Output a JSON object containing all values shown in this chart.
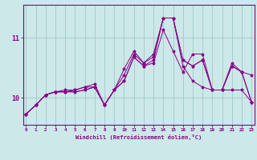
{
  "xlabel": "Windchill (Refroidissement éolien,°C)",
  "background_color": "#cde8e8",
  "grid_color": "#a0c8c8",
  "line_color": "#880088",
  "x_ticks": [
    0,
    1,
    2,
    3,
    4,
    5,
    6,
    7,
    8,
    9,
    10,
    11,
    12,
    13,
    14,
    15,
    16,
    17,
    18,
    19,
    20,
    21,
    22,
    23
  ],
  "y_ticks": [
    10,
    11
  ],
  "ylim": [
    9.55,
    11.55
  ],
  "xlim": [
    -0.3,
    23.3
  ],
  "series": [
    [
      9.73,
      9.88,
      10.05,
      10.1,
      10.1,
      10.1,
      10.13,
      10.18,
      9.88,
      10.13,
      10.28,
      10.68,
      10.53,
      10.58,
      11.13,
      10.78,
      10.43,
      10.73,
      10.73,
      10.13,
      10.13,
      10.58,
      10.43,
      10.38
    ],
    [
      9.73,
      9.88,
      10.05,
      10.1,
      10.1,
      10.1,
      10.13,
      10.18,
      9.88,
      10.13,
      10.28,
      10.68,
      10.53,
      10.63,
      11.33,
      11.33,
      10.63,
      10.53,
      10.63,
      10.13,
      10.13,
      10.53,
      10.43,
      9.93
    ],
    [
      9.73,
      9.88,
      10.05,
      10.1,
      10.1,
      10.13,
      10.18,
      10.23,
      9.88,
      10.13,
      10.38,
      10.73,
      10.58,
      10.68,
      11.33,
      11.33,
      10.63,
      10.53,
      10.63,
      10.13,
      10.13,
      10.53,
      10.43,
      9.93
    ],
    [
      9.73,
      9.88,
      10.05,
      10.1,
      10.13,
      10.13,
      10.18,
      10.18,
      9.88,
      10.13,
      10.48,
      10.78,
      10.58,
      10.73,
      11.33,
      11.33,
      10.53,
      10.28,
      10.18,
      10.13,
      10.13,
      10.13,
      10.13,
      9.93
    ]
  ]
}
